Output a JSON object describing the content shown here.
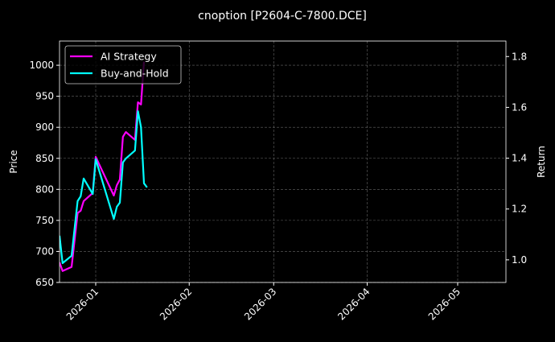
{
  "chart_data": {
    "type": "line",
    "title": "cnoption [P2604-C-7800.DCE]",
    "ylabel": "Price",
    "y2label": "Return",
    "xlim": [
      "2025-12-20",
      "2026-05-17"
    ],
    "ylim": [
      650,
      1039
    ],
    "y2lim": [
      0.911,
      1.861
    ],
    "xticks": [
      "2026-01",
      "2026-02",
      "2026-03",
      "2026-04",
      "2026-05"
    ],
    "yticks": [
      650,
      700,
      750,
      800,
      850,
      900,
      950,
      1000
    ],
    "y2ticks": [
      "1.0",
      "1.2",
      "1.4",
      "1.6",
      "1.8"
    ],
    "grid": true,
    "legend_position": "upper-left",
    "x": [
      "2025-12-20",
      "2025-12-21",
      "2025-12-24",
      "2025-12-26",
      "2025-12-27",
      "2025-12-28",
      "2025-12-31",
      "2026-01-01",
      "2026-01-07",
      "2026-01-08",
      "2026-01-09",
      "2026-01-10",
      "2026-01-11",
      "2026-01-14",
      "2026-01-15",
      "2026-01-16",
      "2026-01-17",
      "2026-01-18"
    ],
    "series": [
      {
        "name": "AI Strategy",
        "color": "#ff00ff",
        "axis": "right",
        "values": [
          0.99,
          0.956,
          0.972,
          1.184,
          1.193,
          1.231,
          1.263,
          1.405,
          1.253,
          1.294,
          1.316,
          1.484,
          1.503,
          1.472,
          1.62,
          1.611,
          1.78,
          null
        ]
      },
      {
        "name": "Buy-and-Hold",
        "color": "#00ffff",
        "axis": "right",
        "values": [
          1.095,
          0.987,
          1.016,
          1.231,
          1.25,
          1.32,
          1.259,
          1.396,
          1.161,
          1.209,
          1.225,
          1.383,
          1.399,
          1.43,
          1.585,
          1.522,
          1.301,
          1.285
        ]
      }
    ]
  }
}
